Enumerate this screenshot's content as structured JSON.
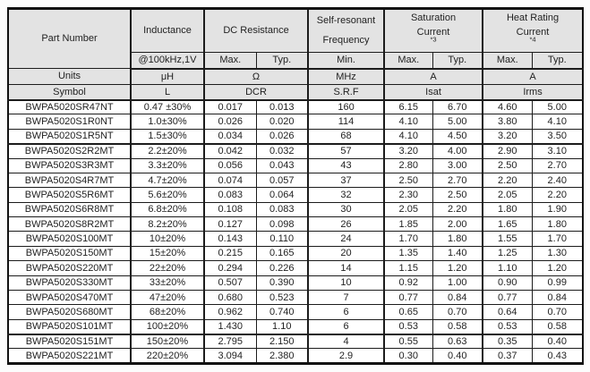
{
  "table": {
    "header": {
      "part_number": "Part Number",
      "inductance": "Inductance",
      "inductance_condition": "@100kHz,1V",
      "dc_resistance": "DC Resistance",
      "srf_line1": "Self-resonant",
      "srf_line2": "Frequency",
      "saturation_line1": "Saturation",
      "saturation_line2": "Current",
      "saturation_note": "*3",
      "heat_line1": "Heat Rating",
      "heat_line2": "Current",
      "heat_note": "*4",
      "max": "Max.",
      "typ": "Typ.",
      "min": "Min."
    },
    "units_row": {
      "label": "Units",
      "inductance": "μH",
      "dcr": "Ω",
      "srf": "MHz",
      "isat": "A",
      "irms": "A"
    },
    "symbol_row": {
      "label": "Symbol",
      "inductance": "L",
      "dcr": "DCR",
      "srf": "S.R.F",
      "isat": "Isat",
      "irms": "Irms"
    },
    "column_keys": [
      "part_number",
      "inductance",
      "dcr_max",
      "dcr_typ",
      "srf_min",
      "isat_max",
      "isat_typ",
      "irms_max",
      "irms_typ"
    ],
    "thick_border_after_rows": [
      2,
      15
    ],
    "rows": [
      [
        "BWPA5020SR47NT",
        "0.47 ±30%",
        "0.017",
        "0.013",
        "160",
        "6.15",
        "6.70",
        "4.60",
        "5.00"
      ],
      [
        "BWPA5020S1R0NT",
        "1.0±30%",
        "0.026",
        "0.020",
        "114",
        "4.10",
        "5.00",
        "3.80",
        "4.10"
      ],
      [
        "BWPA5020S1R5NT",
        "1.5±30%",
        "0.034",
        "0.026",
        "68",
        "4.10",
        "4.50",
        "3.20",
        "3.50"
      ],
      [
        "BWPA5020S2R2MT",
        "2.2±20%",
        "0.042",
        "0.032",
        "57",
        "3.20",
        "4.00",
        "2.90",
        "3.10"
      ],
      [
        "BWPA5020S3R3MT",
        "3.3±20%",
        "0.056",
        "0.043",
        "43",
        "2.80",
        "3.00",
        "2.50",
        "2.70"
      ],
      [
        "BWPA5020S4R7MT",
        "4.7±20%",
        "0.074",
        "0.057",
        "37",
        "2.50",
        "2.70",
        "2.20",
        "2.40"
      ],
      [
        "BWPA5020S5R6MT",
        "5.6±20%",
        "0.083",
        "0.064",
        "32",
        "2.30",
        "2.50",
        "2.05",
        "2.20"
      ],
      [
        "BWPA5020S6R8MT",
        "6.8±20%",
        "0.108",
        "0.083",
        "30",
        "2.05",
        "2.20",
        "1.80",
        "1.90"
      ],
      [
        "BWPA5020S8R2MT",
        "8.2±20%",
        "0.127",
        "0.098",
        "26",
        "1.85",
        "2.00",
        "1.65",
        "1.80"
      ],
      [
        "BWPA5020S100MT",
        "10±20%",
        "0.143",
        "0.110",
        "24",
        "1.70",
        "1.80",
        "1.55",
        "1.70"
      ],
      [
        "BWPA5020S150MT",
        "15±20%",
        "0.215",
        "0.165",
        "20",
        "1.35",
        "1.40",
        "1.25",
        "1.30"
      ],
      [
        "BWPA5020S220MT",
        "22±20%",
        "0.294",
        "0.226",
        "14",
        "1.15",
        "1.20",
        "1.10",
        "1.20"
      ],
      [
        "BWPA5020S330MT",
        "33±20%",
        "0.507",
        "0.390",
        "10",
        "0.92",
        "1.00",
        "0.90",
        "0.99"
      ],
      [
        "BWPA5020S470MT",
        "47±20%",
        "0.680",
        "0.523",
        "7",
        "0.77",
        "0.84",
        "0.77",
        "0.84"
      ],
      [
        "BWPA5020S680MT",
        "68±20%",
        "0.962",
        "0.740",
        "6",
        "0.65",
        "0.70",
        "0.64",
        "0.70"
      ],
      [
        "BWPA5020S101MT",
        "100±20%",
        "1.430",
        "1.10",
        "6",
        "0.53",
        "0.58",
        "0.53",
        "0.58"
      ],
      [
        "BWPA5020S151MT",
        "150±20%",
        "2.795",
        "2.150",
        "4",
        "0.55",
        "0.63",
        "0.35",
        "0.40"
      ],
      [
        "BWPA5020S221MT",
        "220±20%",
        "3.094",
        "2.380",
        "2.9",
        "0.30",
        "0.40",
        "0.37",
        "0.43"
      ]
    ]
  }
}
